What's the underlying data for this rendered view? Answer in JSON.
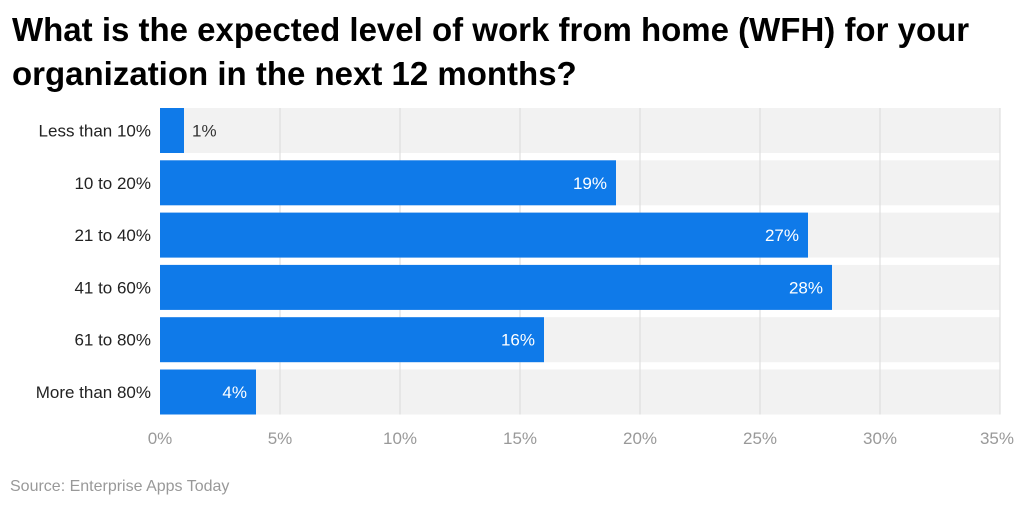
{
  "title": "What is the expected level of work from home (WFH) for your organization in the next 12 months?",
  "source": "Source: Enterprise Apps Today",
  "colors": {
    "bar": "#0f7ae9",
    "track": "#f2f2f2",
    "grid": "#d9d9d9",
    "label_inside": "#ffffff",
    "label_outside": "#333333",
    "tick": "#999999",
    "category": "#222222"
  },
  "chart_data": {
    "type": "bar",
    "orientation": "horizontal",
    "title": "What is the expected level of work from home (WFH) for your organization in the next 12 months?",
    "categories": [
      "Less than 10%",
      "10 to 20%",
      "21 to 40%",
      "41 to 60%",
      "61 to 80%",
      "More than 80%"
    ],
    "values": [
      1,
      19,
      27,
      28,
      16,
      4
    ],
    "value_labels": [
      "1%",
      "19%",
      "27%",
      "28%",
      "16%",
      "4%"
    ],
    "xlim": [
      0,
      35
    ],
    "xticks": [
      0,
      5,
      10,
      15,
      20,
      25,
      30,
      35
    ],
    "xtick_labels": [
      "0%",
      "5%",
      "10%",
      "15%",
      "20%",
      "25%",
      "30%",
      "35%"
    ],
    "grid": true,
    "xlabel": "",
    "ylabel": ""
  }
}
